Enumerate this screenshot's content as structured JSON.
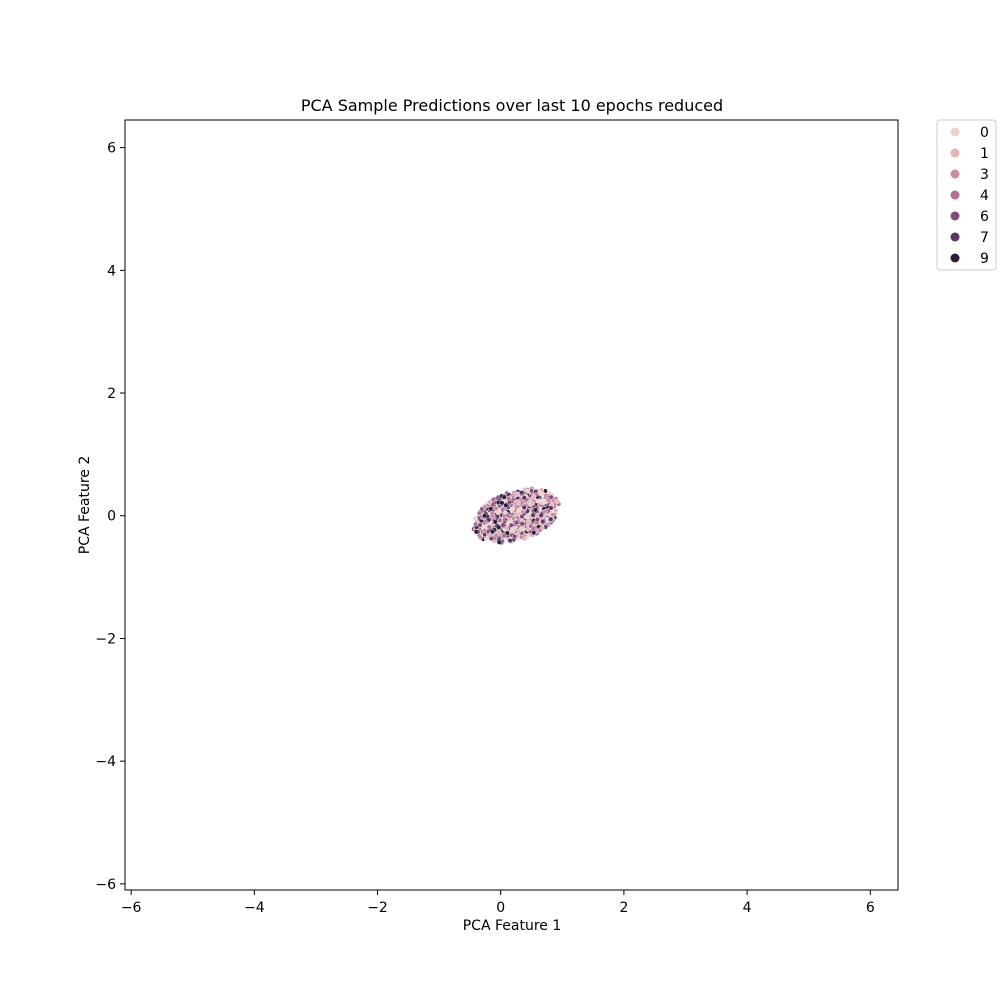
{
  "chart_data": {
    "type": "scatter",
    "title": "PCA Sample Predictions over last 10 epochs reduced",
    "xlabel": "PCA Feature 1",
    "ylabel": "PCA Feature 2",
    "xlim": [
      -6.1,
      6.45
    ],
    "ylim": [
      -6.1,
      6.45
    ],
    "xticks": [
      -6,
      -4,
      -2,
      0,
      2,
      4,
      6
    ],
    "yticks": [
      -6,
      -4,
      -2,
      0,
      2,
      4,
      6
    ],
    "tick_labels": [
      "−6",
      "−4",
      "−2",
      "0",
      "2",
      "4",
      "6"
    ],
    "grid": false,
    "legend_position": "outside-top-right",
    "cluster": {
      "center": [
        0.25,
        0.0
      ],
      "x_range": [
        -1.1,
        1.45
      ],
      "y_range": [
        -0.78,
        1.07
      ],
      "tilt_degrees": 18,
      "approx_points_per_class": 230
    },
    "series": [
      {
        "name": "0",
        "color": "#ecd3c8"
      },
      {
        "name": "1",
        "color": "#e0b5b2"
      },
      {
        "name": "3",
        "color": "#c98a9a"
      },
      {
        "name": "4",
        "color": "#b06f93"
      },
      {
        "name": "6",
        "color": "#84497c"
      },
      {
        "name": "7",
        "color": "#5a3564"
      },
      {
        "name": "9",
        "color": "#2b1d3d"
      }
    ]
  }
}
